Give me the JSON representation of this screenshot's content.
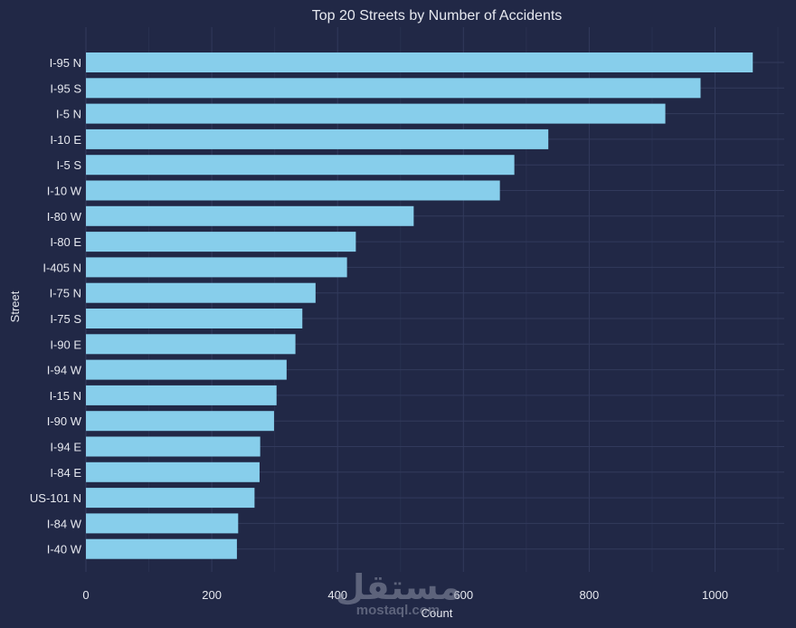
{
  "chart_data": {
    "type": "bar",
    "orientation": "horizontal",
    "title": "Top 20 Streets by Number of Accidents",
    "xlabel": "Count",
    "ylabel": "Street",
    "xlim": [
      0,
      1110
    ],
    "xticks": [
      0,
      200,
      400,
      600,
      800,
      1000
    ],
    "grid": true,
    "categories": [
      "I-95 N",
      "I-95 S",
      "I-5 N",
      "I-10 E",
      "I-5 S",
      "I-10 W",
      "I-80 W",
      "I-80 E",
      "I-405 N",
      "I-75 N",
      "I-75 S",
      "I-90 E",
      "I-94 W",
      "I-15 N",
      "I-90 W",
      "I-94 E",
      "I-84 E",
      "US-101 N",
      "I-84 W",
      "I-40 W"
    ],
    "values": [
      1060,
      977,
      921,
      735,
      681,
      658,
      521,
      429,
      415,
      365,
      344,
      333,
      319,
      303,
      299,
      277,
      276,
      268,
      242,
      240
    ],
    "bar_color": "#87ceeb"
  },
  "watermark": {
    "arabic": "مستقل",
    "latin": "mostaql.com"
  }
}
